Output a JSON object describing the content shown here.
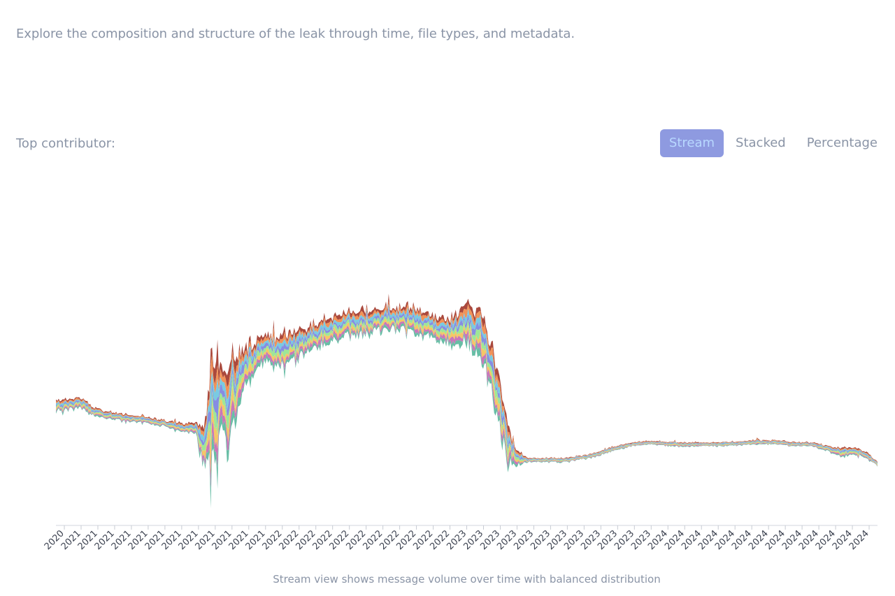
{
  "header": {
    "description": "Explore the composition and structure of the leak through time, file types, and metadata."
  },
  "controls": {
    "contributor_label": "Top contributor:",
    "views": [
      {
        "label": "Stream",
        "active": true
      },
      {
        "label": "Stacked",
        "active": false
      },
      {
        "label": "Percentage",
        "active": false
      }
    ]
  },
  "caption": "Stream view shows message volume over time with balanced distribution",
  "chart_data": {
    "type": "area",
    "mode": "streamgraph",
    "grid": false,
    "legend": "none",
    "x_tick_labels": [
      "2020",
      "2021",
      "2021",
      "2021",
      "2021",
      "2021",
      "2021",
      "2021",
      "2021",
      "2021",
      "2021",
      "2021",
      "2021",
      "2022",
      "2022",
      "2022",
      "2022",
      "2022",
      "2022",
      "2022",
      "2022",
      "2022",
      "2022",
      "2022",
      "2023",
      "2023",
      "2023",
      "2023",
      "2023",
      "2023",
      "2023",
      "2023",
      "2023",
      "2023",
      "2023",
      "2023",
      "2024",
      "2024",
      "2024",
      "2024",
      "2024",
      "2024",
      "2024",
      "2024",
      "2024",
      "2024",
      "2024",
      "2024",
      "2024"
    ],
    "x_range": [
      0,
      1
    ],
    "series_colors": [
      "#a33a2c",
      "#f08a4b",
      "#6ec5e0",
      "#7c83e0",
      "#96e58e",
      "#f4c25a",
      "#c46bb3",
      "#5ab89d"
    ],
    "stream_profile": {
      "x": [
        0.0,
        0.03,
        0.05,
        0.08,
        0.1,
        0.13,
        0.15,
        0.17,
        0.18,
        0.19,
        0.2,
        0.21,
        0.22,
        0.23,
        0.24,
        0.25,
        0.27,
        0.3,
        0.33,
        0.36,
        0.4,
        0.43,
        0.46,
        0.48,
        0.5,
        0.52,
        0.53,
        0.54,
        0.55,
        0.56,
        0.57,
        0.575,
        0.59,
        0.62,
        0.65,
        0.68,
        0.7,
        0.72,
        0.75,
        0.8,
        0.85,
        0.88,
        0.9,
        0.92,
        0.94,
        0.955,
        0.97,
        0.985,
        1.0
      ],
      "center": [
        0.0,
        0.01,
        -0.04,
        -0.06,
        -0.07,
        -0.09,
        -0.11,
        -0.12,
        -0.2,
        -0.05,
        0.02,
        0.0,
        0.12,
        0.2,
        0.22,
        0.28,
        0.28,
        0.32,
        0.38,
        0.42,
        0.44,
        0.44,
        0.4,
        0.38,
        0.42,
        0.32,
        0.2,
        0.0,
        -0.2,
        -0.27,
        -0.28,
        -0.28,
        -0.28,
        -0.28,
        -0.26,
        -0.22,
        -0.2,
        -0.19,
        -0.2,
        -0.2,
        -0.19,
        -0.19,
        -0.2,
        -0.2,
        -0.22,
        -0.24,
        -0.23,
        -0.25,
        -0.3
      ],
      "thickness": [
        0.05,
        0.05,
        0.04,
        0.03,
        0.03,
        0.03,
        0.04,
        0.05,
        0.2,
        0.45,
        0.4,
        0.38,
        0.3,
        0.2,
        0.14,
        0.14,
        0.14,
        0.13,
        0.12,
        0.12,
        0.11,
        0.12,
        0.12,
        0.13,
        0.2,
        0.22,
        0.24,
        0.26,
        0.2,
        0.08,
        0.03,
        0.02,
        0.02,
        0.02,
        0.02,
        0.02,
        0.02,
        0.02,
        0.02,
        0.02,
        0.02,
        0.02,
        0.02,
        0.02,
        0.03,
        0.04,
        0.04,
        0.03,
        0.02
      ]
    }
  }
}
